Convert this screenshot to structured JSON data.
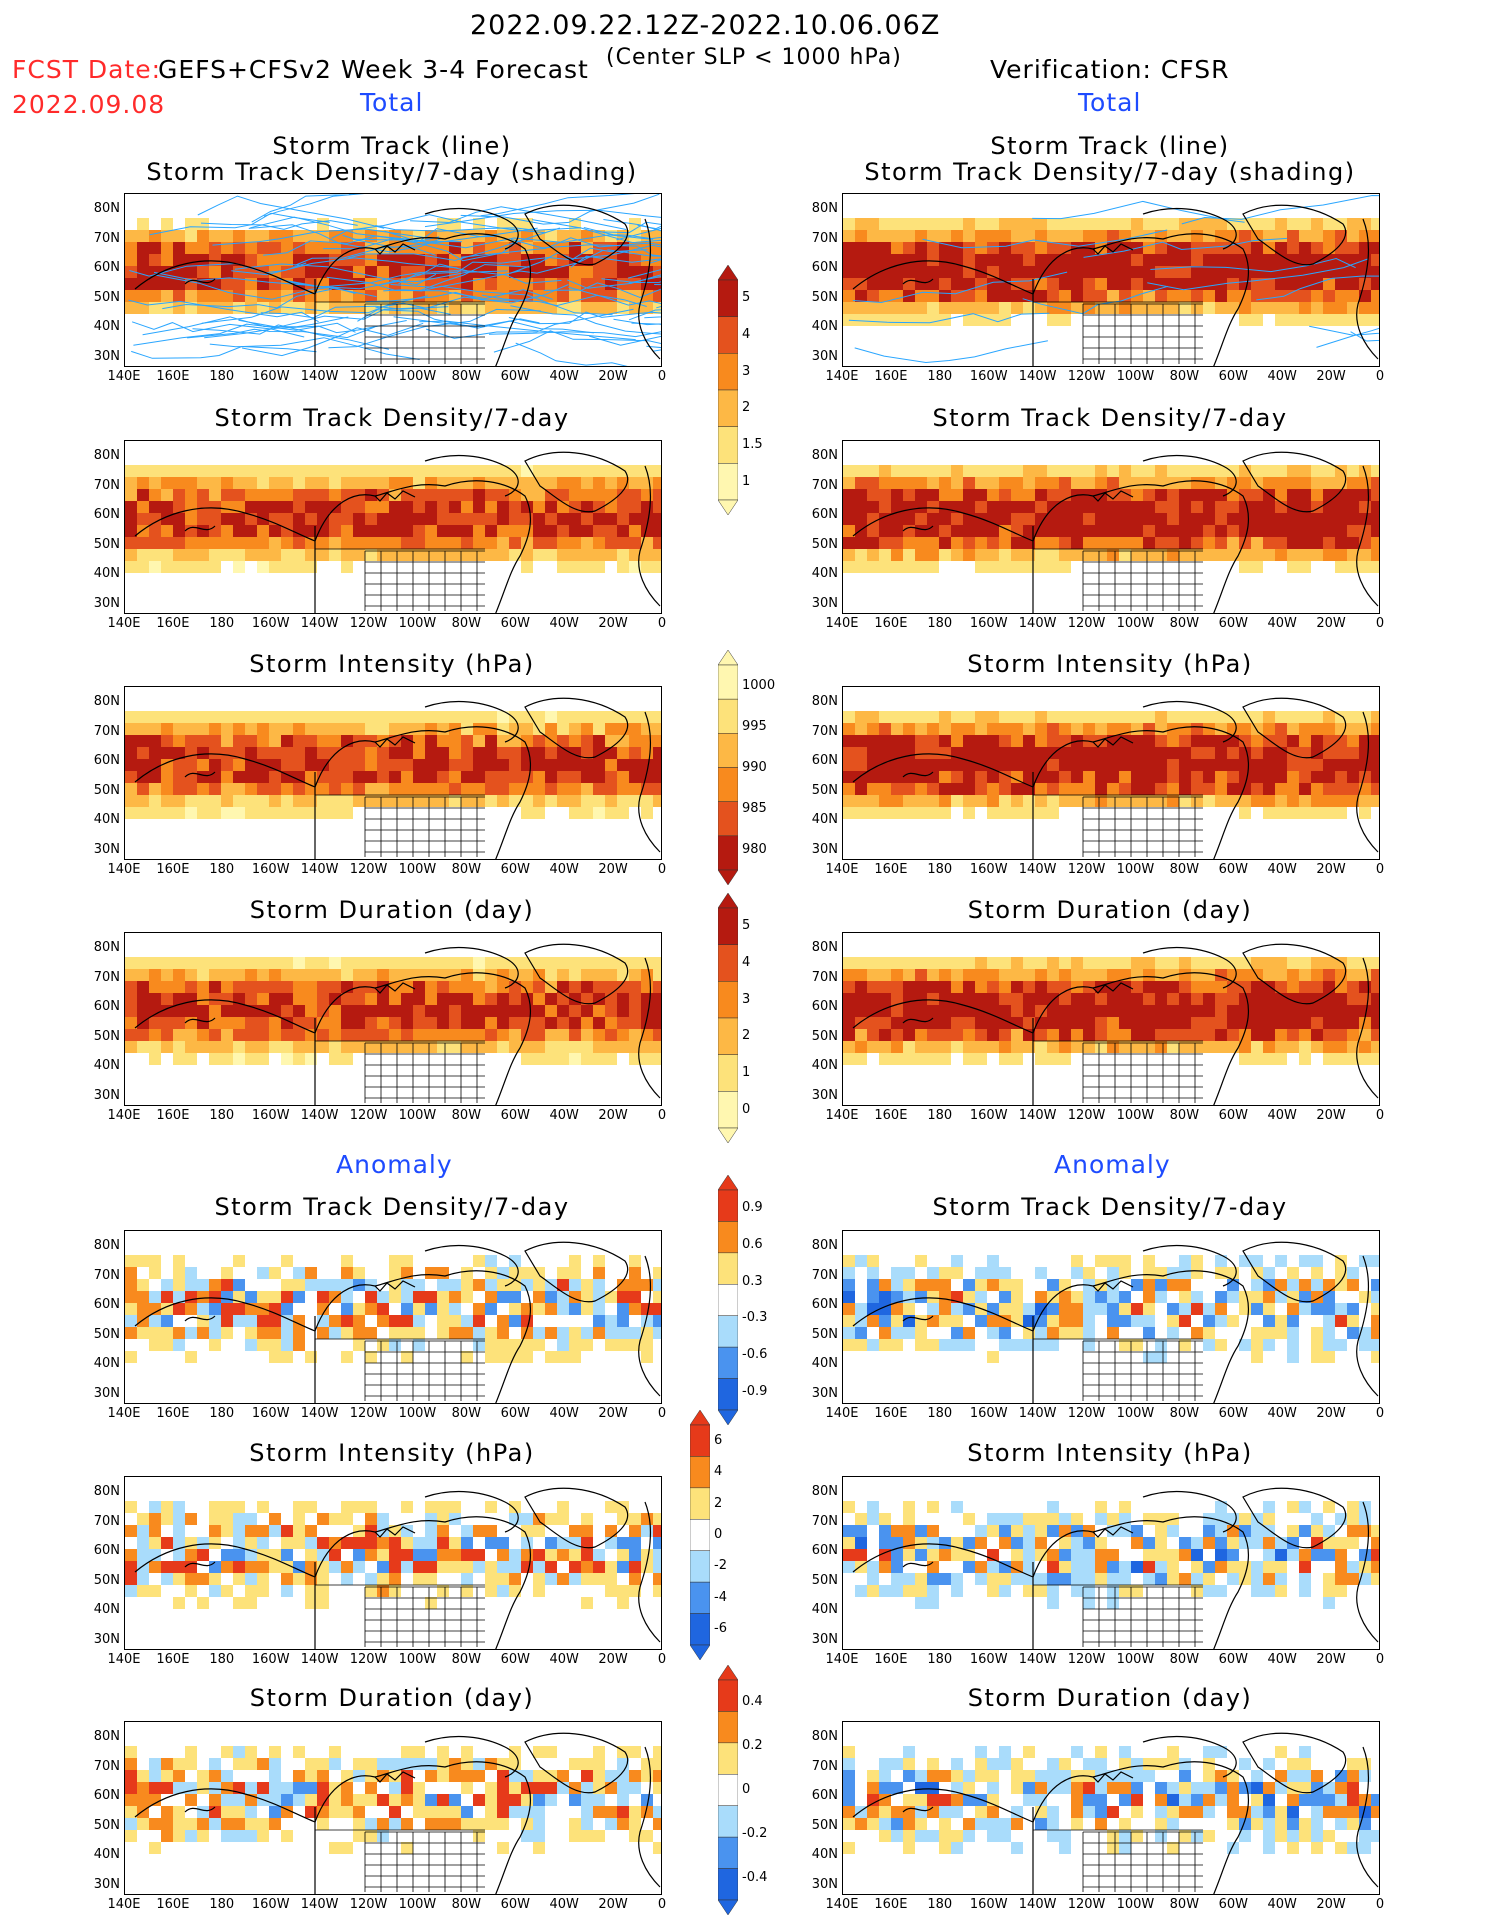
{
  "header": {
    "date_range": "2022.09.22.12Z-2022.10.06.06Z",
    "fcst_date_label": "FCST Date:",
    "fcst_date_value": "2022.09.08",
    "forecast_label": "GEFS+CFSv2 Week 3-4 Forecast",
    "criterion": "(Center SLP < 1000 hPa)",
    "verification_label": "Verification: CFSR"
  },
  "sections": {
    "total": "Total",
    "anomaly": "Anomaly"
  },
  "panel_titles": {
    "track_line": "Storm Track (line)",
    "track_density_shading": "Storm Track Density/7-day (shading)",
    "track_density": "Storm Track Density/7-day",
    "intensity": "Storm Intensity (hPa)",
    "duration": "Storm Duration (day)"
  },
  "axes": {
    "lat_labels": [
      "80N",
      "70N",
      "60N",
      "50N",
      "40N",
      "30N"
    ],
    "lon_labels": [
      "140E",
      "160E",
      "180",
      "160W",
      "140W",
      "120W",
      "100W",
      "80W",
      "60W",
      "40W",
      "20W",
      "0"
    ]
  },
  "colorbars": {
    "density_total": [
      "5",
      "4",
      "3",
      "2",
      "1.5",
      "1"
    ],
    "intensity_total": [
      "1000",
      "995",
      "990",
      "985",
      "980"
    ],
    "duration_total": [
      "5",
      "4",
      "3",
      "2",
      "1",
      "0"
    ],
    "density_anomaly": [
      "0.9",
      "0.6",
      "0.3",
      "-0.3",
      "-0.6",
      "-0.9"
    ],
    "intensity_anomaly": [
      "6",
      "4",
      "2",
      "0",
      "-2",
      "-4",
      "-6"
    ],
    "duration_anomaly": [
      "0.4",
      "0.2",
      "0",
      "-0.2",
      "-0.4"
    ]
  },
  "colors": {
    "warm_scale": [
      "#fff7b0",
      "#fde27a",
      "#fdb845",
      "#f88a1e",
      "#e4521e",
      "#b51a10"
    ],
    "anomaly_scale": [
      "#1f66e0",
      "#4a93ef",
      "#a9dcfb",
      "#ffffff",
      "#fde27a",
      "#f88a1e",
      "#e63a1a"
    ],
    "track_line": "#2aa6ff",
    "map_outline": "#000000"
  }
}
